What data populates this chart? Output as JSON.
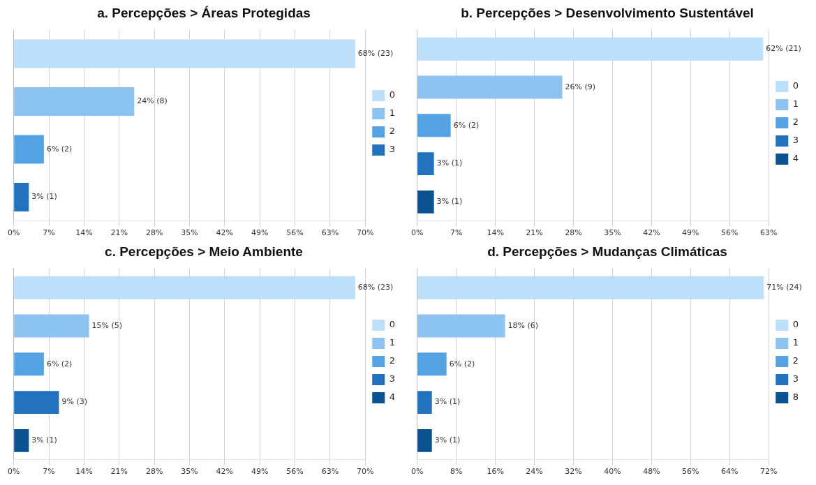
{
  "chart_data": [
    {
      "type": "bar",
      "orientation": "horizontal",
      "title": "a. Percepções > Áreas Protegidas",
      "categories": [
        null,
        null,
        null,
        null
      ],
      "grid": "x",
      "legend": "right",
      "tick_labels": "x",
      "xlim": [
        0,
        70
      ],
      "xticks": [
        {
          "value": 0,
          "label": "0%"
        },
        {
          "value": 7,
          "label": "7%"
        },
        {
          "value": 14,
          "label": "14%"
        },
        {
          "value": 21,
          "label": "21%"
        },
        {
          "value": 28,
          "label": "28%"
        },
        {
          "value": 35,
          "label": "35%"
        },
        {
          "value": 42,
          "label": "42%"
        },
        {
          "value": 49,
          "label": "49%"
        },
        {
          "value": 56,
          "label": "56%"
        },
        {
          "value": 63,
          "label": "63%"
        },
        {
          "value": 70,
          "label": "70%"
        }
      ],
      "series": [
        {
          "name": "0",
          "color": "#bddff9",
          "values": [
            68,
            null,
            null,
            null
          ],
          "value_labels": [
            "68% (23)",
            null,
            null,
            null
          ]
        },
        {
          "name": "1",
          "color": "#8dc3f0",
          "values": [
            null,
            24,
            null,
            null
          ],
          "value_labels": [
            null,
            "24% (8)",
            null,
            null
          ]
        },
        {
          "name": "2",
          "color": "#56a3e3",
          "values": [
            null,
            null,
            6,
            null
          ],
          "value_labels": [
            null,
            null,
            "6% (2)",
            null
          ]
        },
        {
          "name": "3",
          "color": "#2272bd",
          "values": [
            null,
            null,
            null,
            3
          ],
          "value_labels": [
            null,
            null,
            null,
            "3% (1)"
          ]
        }
      ]
    },
    {
      "type": "bar",
      "orientation": "horizontal",
      "title": "b. Percepções > Desenvolvimento Sustentável",
      "categories": [
        null,
        null,
        null,
        null,
        null
      ],
      "grid": "x",
      "legend": "right",
      "tick_labels": "x",
      "xlim": [
        0,
        63
      ],
      "xticks": [
        {
          "value": 0,
          "label": "0%"
        },
        {
          "value": 7,
          "label": "7%"
        },
        {
          "value": 14,
          "label": "14%"
        },
        {
          "value": 21,
          "label": "21%"
        },
        {
          "value": 28,
          "label": "28%"
        },
        {
          "value": 35,
          "label": "35%"
        },
        {
          "value": 42,
          "label": "42%"
        },
        {
          "value": 49,
          "label": "49%"
        },
        {
          "value": 56,
          "label": "56%"
        },
        {
          "value": 63,
          "label": "63%"
        }
      ],
      "series": [
        {
          "name": "0",
          "color": "#bddff9",
          "values": [
            62,
            null,
            null,
            null,
            null
          ],
          "value_labels": [
            "62% (21)",
            null,
            null,
            null,
            null
          ]
        },
        {
          "name": "1",
          "color": "#8dc3f0",
          "values": [
            null,
            26,
            null,
            null,
            null
          ],
          "value_labels": [
            null,
            "26% (9)",
            null,
            null,
            null
          ]
        },
        {
          "name": "2",
          "color": "#56a3e3",
          "values": [
            null,
            null,
            6,
            null,
            null
          ],
          "value_labels": [
            null,
            null,
            "6% (2)",
            null,
            null
          ]
        },
        {
          "name": "3",
          "color": "#2272bd",
          "values": [
            null,
            null,
            null,
            3,
            null
          ],
          "value_labels": [
            null,
            null,
            null,
            "3% (1)",
            null
          ]
        },
        {
          "name": "4",
          "color": "#0b5290",
          "values": [
            null,
            null,
            null,
            null,
            3
          ],
          "value_labels": [
            null,
            null,
            null,
            null,
            "3% (1)"
          ]
        }
      ]
    },
    {
      "type": "bar",
      "orientation": "horizontal",
      "title": "c. Percepções > Meio Ambiente",
      "categories": [
        null,
        null,
        null,
        null,
        null
      ],
      "grid": "x",
      "legend": "right",
      "tick_labels": "x",
      "xlim": [
        0,
        70
      ],
      "xticks": [
        {
          "value": 0,
          "label": "0%"
        },
        {
          "value": 7,
          "label": "7%"
        },
        {
          "value": 14,
          "label": "14%"
        },
        {
          "value": 21,
          "label": "21%"
        },
        {
          "value": 28,
          "label": "28%"
        },
        {
          "value": 35,
          "label": "35%"
        },
        {
          "value": 42,
          "label": "42%"
        },
        {
          "value": 49,
          "label": "49%"
        },
        {
          "value": 56,
          "label": "56%"
        },
        {
          "value": 63,
          "label": "63%"
        },
        {
          "value": 70,
          "label": "70%"
        }
      ],
      "series": [
        {
          "name": "0",
          "color": "#bddff9",
          "values": [
            68,
            null,
            null,
            null,
            null
          ],
          "value_labels": [
            "68% (23)",
            null,
            null,
            null,
            null
          ]
        },
        {
          "name": "1",
          "color": "#8dc3f0",
          "values": [
            null,
            15,
            null,
            null,
            null
          ],
          "value_labels": [
            null,
            "15% (5)",
            null,
            null,
            null
          ]
        },
        {
          "name": "2",
          "color": "#56a3e3",
          "values": [
            null,
            null,
            6,
            null,
            null
          ],
          "value_labels": [
            null,
            null,
            "6% (2)",
            null,
            null
          ]
        },
        {
          "name": "3",
          "color": "#2272bd",
          "values": [
            null,
            null,
            null,
            9,
            null
          ],
          "value_labels": [
            null,
            null,
            null,
            "9% (3)",
            null
          ]
        },
        {
          "name": "4",
          "color": "#0b5290",
          "values": [
            null,
            null,
            null,
            null,
            3
          ],
          "value_labels": [
            null,
            null,
            null,
            null,
            "3% (1)"
          ]
        }
      ]
    },
    {
      "type": "bar",
      "orientation": "horizontal",
      "title": "d. Percepções > Mudanças Climáticas",
      "categories": [
        null,
        null,
        null,
        null,
        null
      ],
      "grid": "x",
      "legend": "right",
      "tick_labels": "x",
      "xlim": [
        0,
        72
      ],
      "xticks": [
        {
          "value": 0,
          "label": "0%"
        },
        {
          "value": 8,
          "label": "8%"
        },
        {
          "value": 16,
          "label": "16%"
        },
        {
          "value": 24,
          "label": "24%"
        },
        {
          "value": 32,
          "label": "32%"
        },
        {
          "value": 40,
          "label": "40%"
        },
        {
          "value": 48,
          "label": "48%"
        },
        {
          "value": 56,
          "label": "56%"
        },
        {
          "value": 64,
          "label": "64%"
        },
        {
          "value": 72,
          "label": "72%"
        }
      ],
      "series": [
        {
          "name": "0",
          "color": "#bddff9",
          "values": [
            71,
            null,
            null,
            null,
            null
          ],
          "value_labels": [
            "71% (24)",
            null,
            null,
            null,
            null
          ]
        },
        {
          "name": "1",
          "color": "#8dc3f0",
          "values": [
            null,
            18,
            null,
            null,
            null
          ],
          "value_labels": [
            null,
            "18% (6)",
            null,
            null,
            null
          ]
        },
        {
          "name": "2",
          "color": "#56a3e3",
          "values": [
            null,
            null,
            6,
            null,
            null
          ],
          "value_labels": [
            null,
            null,
            "6% (2)",
            null,
            null
          ]
        },
        {
          "name": "3",
          "color": "#2272bd",
          "values": [
            null,
            null,
            null,
            3,
            null
          ],
          "value_labels": [
            null,
            null,
            null,
            "3% (1)",
            null
          ]
        },
        {
          "name": "8",
          "color": "#0b5290",
          "values": [
            null,
            null,
            null,
            null,
            3
          ],
          "value_labels": [
            null,
            null,
            null,
            null,
            "3% (1)"
          ]
        }
      ]
    }
  ]
}
